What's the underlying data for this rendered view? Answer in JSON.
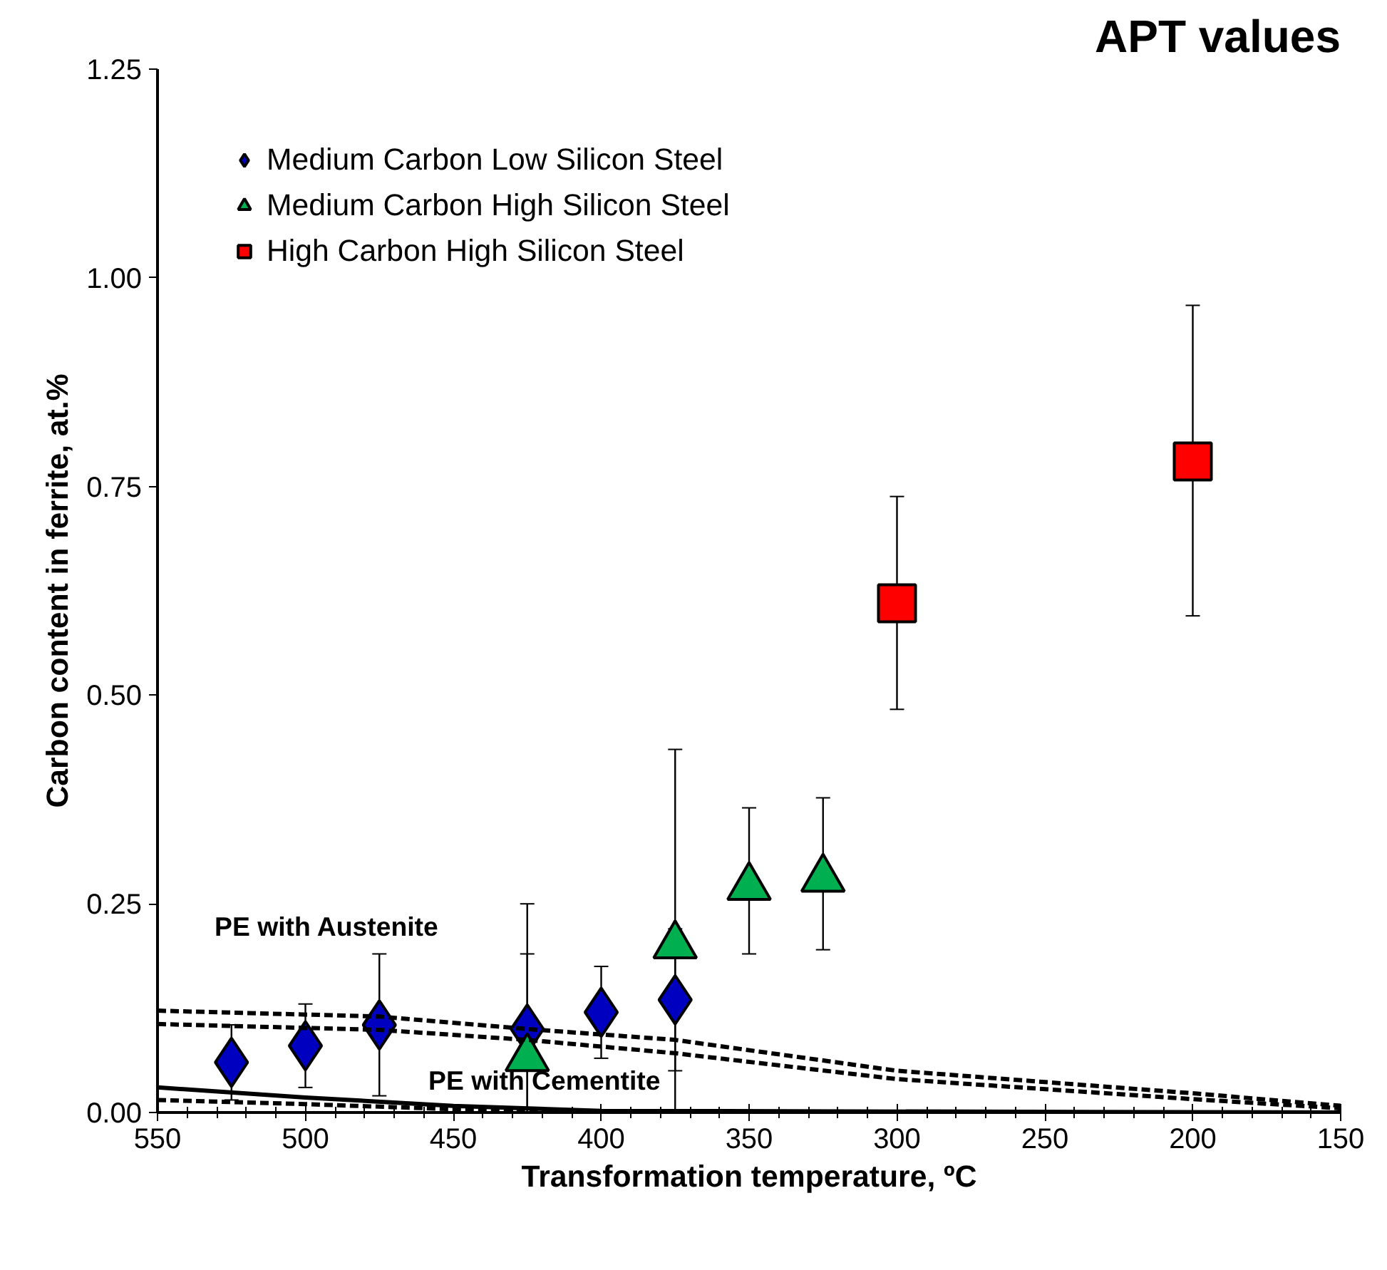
{
  "chart_data": {
    "type": "scatter",
    "title": "APT values",
    "xlabel": "Transformation temperature, ºC",
    "ylabel": "Carbon content in ferrite, at.%",
    "xlim": [
      550,
      150
    ],
    "xticks": [
      550,
      500,
      450,
      400,
      350,
      300,
      250,
      200,
      150
    ],
    "ylim": [
      0,
      1.25
    ],
    "yticks": [
      {
        "value": 0,
        "label": "0.00"
      },
      {
        "value": 0.25,
        "label": "0.25"
      },
      {
        "value": 0.5,
        "label": "0.50"
      },
      {
        "value": 0.75,
        "label": "0.75"
      },
      {
        "value": 1.0,
        "label": "1.00"
      },
      {
        "value": 1.25,
        "label": "1.25"
      }
    ],
    "grid": false,
    "legend": "top left",
    "series": [
      {
        "name": "Medium Carbon Low Silicon Steel",
        "color": "#0000c0",
        "marker": "diamond",
        "x": [
          525,
          500,
          475,
          425,
          400,
          375
        ],
        "values": [
          0.06,
          0.08,
          0.105,
          0.1,
          0.12,
          0.135
        ],
        "errors": [
          [
            0.015,
            0.105
          ],
          [
            0.03,
            0.13
          ],
          [
            0.02,
            0.19
          ],
          [
            0.0,
            0.25
          ],
          [
            0.065,
            0.175
          ],
          [
            0.05,
            0.22
          ]
        ]
      },
      {
        "name": "Medium Carbon High Silicon Steel",
        "color": "#00b050",
        "marker": "triangle",
        "x": [
          425,
          375,
          350,
          325
        ],
        "values": [
          0.065,
          0.2,
          0.27,
          0.28
        ],
        "errors": [
          [
            0.0,
            0.19
          ],
          [
            0.0,
            0.435
          ],
          [
            0.19,
            0.365
          ],
          [
            0.195,
            0.377
          ]
        ]
      },
      {
        "name": "High Carbon High Silicon Steel",
        "color": "#ff0000",
        "marker": "square",
        "x": [
          300,
          200
        ],
        "values": [
          0.61,
          0.78
        ],
        "errors": [
          [
            0.483,
            0.738
          ],
          [
            0.595,
            0.967
          ]
        ]
      },
      {
        "type": "line",
        "color": "#000000",
        "line_style": "dashed",
        "x": [
          550,
          475,
          425,
          375,
          300,
          200,
          150
        ],
        "values": [
          0.122,
          0.115,
          0.1,
          0.087,
          0.05,
          0.023,
          0.008
        ]
      },
      {
        "type": "line",
        "color": "#000000",
        "line_style": "dashed",
        "x": [
          550,
          475,
          425,
          375,
          300,
          200,
          150
        ],
        "values": [
          0.106,
          0.099,
          0.087,
          0.071,
          0.04,
          0.016,
          0.005
        ]
      },
      {
        "type": "line",
        "color": "#000000",
        "line_style": "solid",
        "x": [
          550,
          500,
          450,
          400,
          150
        ],
        "values": [
          0.03,
          0.018,
          0.008,
          0.002,
          0.0
        ]
      },
      {
        "type": "line",
        "color": "#000000",
        "line_style": "dashed",
        "x": [
          550,
          500,
          450,
          400
        ],
        "values": [
          0.015,
          0.01,
          0.004,
          0.0
        ]
      }
    ],
    "annotations": [
      "PE with Austenite",
      "PE with Cementite"
    ]
  }
}
